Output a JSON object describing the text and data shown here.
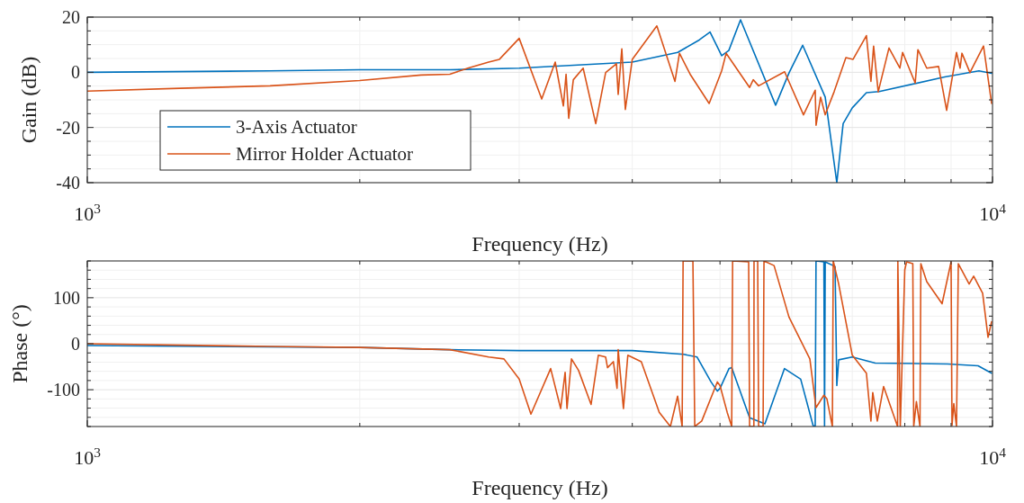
{
  "chart_data": [
    {
      "type": "line",
      "xlabel": "Frequency (Hz)",
      "ylabel": "Gain (dB)",
      "log": "x",
      "grid": true,
      "legend": "bottom left",
      "line_style": "solid",
      "marker": "none",
      "xlim": [
        1000,
        10000
      ],
      "xticks": [
        {
          "value": 1000,
          "label": "10$^{3}$"
        },
        {
          "value": 2000,
          "label": null
        },
        {
          "value": 3000,
          "label": null
        },
        {
          "value": 4000,
          "label": null
        },
        {
          "value": 5000,
          "label": null
        },
        {
          "value": 6000,
          "label": null
        },
        {
          "value": 7000,
          "label": null
        },
        {
          "value": 8000,
          "label": null
        },
        {
          "value": 9000,
          "label": null
        },
        {
          "value": 10000,
          "label": "10$^{4}$"
        }
      ],
      "ylim": [
        -40,
        20
      ],
      "yticks": [
        -40,
        {
          "value": -35,
          "label": null
        },
        {
          "value": -30,
          "label": null
        },
        {
          "value": -25,
          "label": null
        },
        -20,
        {
          "value": -15,
          "label": null
        },
        {
          "value": -10,
          "label": null
        },
        {
          "value": -5,
          "label": null
        },
        0,
        {
          "value": 5,
          "label": null
        },
        {
          "value": 10,
          "label": null
        },
        {
          "value": 15,
          "label": null
        },
        20
      ],
      "series": [
        {
          "name": "3-Axis Actuator",
          "color": "#0072bd",
          "x": [
            1000,
            1592,
            2000,
            2515,
            3000,
            4000,
            4490,
            4742,
            4875,
            5021,
            5113,
            5268,
            5760,
            5962,
            6170,
            6534,
            6730,
            6839,
            7000,
            7256,
            7494,
            8856,
            9661,
            9977
          ],
          "values": [
            0,
            0.5,
            0.9,
            0.9,
            1.5,
            3.7,
            7.2,
            11.7,
            14.6,
            6,
            7.9,
            19,
            -11.9,
            -0.1,
            9.8,
            -9,
            -40,
            -18.6,
            -12.9,
            -7.4,
            -7,
            -1.7,
            0.5,
            -0.4
          ]
        },
        {
          "name": "Mirror Holder Actuator",
          "color": "#d95319",
          "x": [
            1000,
            1266,
            1592,
            2000,
            2338,
            2515,
            2633,
            2776,
            2853,
            3000,
            3177,
            3288,
            3357,
            3380,
            3403,
            3443,
            3530,
            3645,
            3738,
            3842,
            3859,
            3895,
            3930,
            4000,
            4258,
            4459,
            4510,
            4634,
            4864,
            5021,
            5079,
            5391,
            5441,
            5516,
            5893,
            6183,
            6370,
            6384,
            6458,
            6534,
            6683,
            6887,
            7014,
            7256,
            7340,
            7390,
            7477,
            7685,
            7901,
            7956,
            8215,
            8272,
            8460,
            8718,
            8899,
            9125,
            9209,
            9252,
            9443,
            9774,
            9977
          ],
          "values": [
            -6.8,
            -5.8,
            -4.9,
            -3,
            -1,
            -0.7,
            1.5,
            3.7,
            4.7,
            12.3,
            -9.7,
            3.7,
            -12.2,
            -0.7,
            -16.7,
            -2.7,
            1.5,
            -18.6,
            -0.1,
            3.1,
            -8,
            8.5,
            -13.5,
            4.7,
            16.8,
            -3.3,
            6.9,
            -0.7,
            -11.3,
            0.5,
            6.9,
            -5.5,
            -2.7,
            -4.9,
            0.2,
            -15.4,
            -6.5,
            -19.2,
            -9,
            -15.4,
            -7.1,
            5.3,
            4.7,
            13.3,
            -3.3,
            9.5,
            -7.1,
            8.8,
            1.5,
            7.2,
            -3.9,
            8.2,
            1.5,
            2.1,
            -13.8,
            7.2,
            1.5,
            6.9,
            -0.1,
            9.5,
            -11.3
          ]
        }
      ]
    },
    {
      "type": "line",
      "xlabel": "Frequency (Hz)",
      "ylabel": "Phase (°)",
      "log": "x",
      "grid": true,
      "legend": false,
      "line_style": "solid",
      "marker": "none",
      "xlim": [
        1000,
        10000
      ],
      "xticks": [
        {
          "value": 1000,
          "label": "10$^{3}$"
        },
        {
          "value": 2000,
          "label": null
        },
        {
          "value": 3000,
          "label": null
        },
        {
          "value": 4000,
          "label": null
        },
        {
          "value": 5000,
          "label": null
        },
        {
          "value": 6000,
          "label": null
        },
        {
          "value": 7000,
          "label": null
        },
        {
          "value": 8000,
          "label": null
        },
        {
          "value": 9000,
          "label": null
        },
        {
          "value": 10000,
          "label": "10$^{4}$"
        }
      ],
      "ylim": [
        -180,
        180
      ],
      "yticks": [
        {
          "value": -180,
          "label": null
        },
        {
          "value": -160,
          "label": null
        },
        {
          "value": -140,
          "label": null
        },
        {
          "value": -120,
          "label": null
        },
        -100,
        {
          "value": -80,
          "label": null
        },
        {
          "value": -60,
          "label": null
        },
        {
          "value": -40,
          "label": null
        },
        {
          "value": -20,
          "label": null
        },
        0,
        {
          "value": 20,
          "label": null
        },
        {
          "value": 40,
          "label": null
        },
        {
          "value": 60,
          "label": null
        },
        {
          "value": 80,
          "label": null
        },
        100,
        {
          "value": 120,
          "label": null
        },
        {
          "value": 140,
          "label": null
        },
        {
          "value": 160,
          "label": null
        },
        {
          "value": 180,
          "label": null
        }
      ],
      "series": [
        {
          "color": "#0072bd",
          "x": [
            1000,
            2000,
            2515,
            3000,
            4000,
            4557,
            4717,
            4887,
            4966,
            5000,
            5116,
            5151,
            5391,
            5605,
            5891,
            6139,
            6336,
            6370,
            6383,
            6512,
            6523,
            6534,
            6700,
            6730,
            6762,
            7000,
            7420,
            8918,
            9640,
            9977
          ],
          "values": [
            -4,
            -8,
            -13,
            -15,
            -15,
            -23,
            -29,
            -83,
            -103,
            -97,
            -54,
            -52,
            -161,
            -174,
            -54,
            -77,
            -178,
            -180,
            180,
            178,
            -180,
            178,
            168,
            -91,
            -35,
            -29,
            -42,
            -44,
            -48,
            -64
          ]
        },
        {
          "color": "#d95319",
          "x": [
            1000,
            1592,
            2000,
            2515,
            2776,
            2886,
            3000,
            3091,
            3250,
            3334,
            3372,
            3388,
            3427,
            3489,
            3602,
            3669,
            3738,
            3756,
            3812,
            3848,
            3859,
            3911,
            3955,
            4093,
            4284,
            4407,
            4489,
            4541,
            4552,
            4667,
            4689,
            4773,
            4966,
            5000,
            5092,
            5151,
            5163,
            5378,
            5391,
            5450,
            5452,
            5503,
            5516,
            5579,
            5592,
            5737,
            5959,
            6284,
            6383,
            6512,
            6563,
            6654,
            6669,
            6762,
            7000,
            7256,
            7340,
            7374,
            7460,
            7580,
            7855,
            7860,
            7909,
            8000,
            8037,
            8165,
            8184,
            8240,
            8315,
            8334,
            8460,
            8796,
            9000,
            9021,
            9062,
            9125,
            9167,
            9423,
            9532,
            9752,
            9887,
            9977
          ],
          "values": [
            0,
            -6,
            -8,
            -13,
            -29,
            -33,
            -77,
            -153,
            -54,
            -141,
            -62,
            -141,
            -33,
            -58,
            -132,
            -25,
            -29,
            -52,
            -39,
            -97,
            -13,
            -141,
            -25,
            -39,
            -149,
            -180,
            -114,
            -180,
            180,
            180,
            -180,
            -168,
            -83,
            -91,
            -149,
            -180,
            180,
            178,
            -180,
            -180,
            180,
            180,
            -180,
            -180,
            180,
            170,
            58,
            -33,
            -139,
            -112,
            -120,
            -180,
            180,
            130,
            -25,
            -64,
            -168,
            -106,
            -168,
            -93,
            -180,
            180,
            -180,
            161,
            178,
            174,
            -180,
            -126,
            -180,
            174,
            135,
            87,
            178,
            -178,
            -130,
            -180,
            174,
            130,
            147,
            110,
            14,
            48
          ]
        }
      ]
    }
  ]
}
